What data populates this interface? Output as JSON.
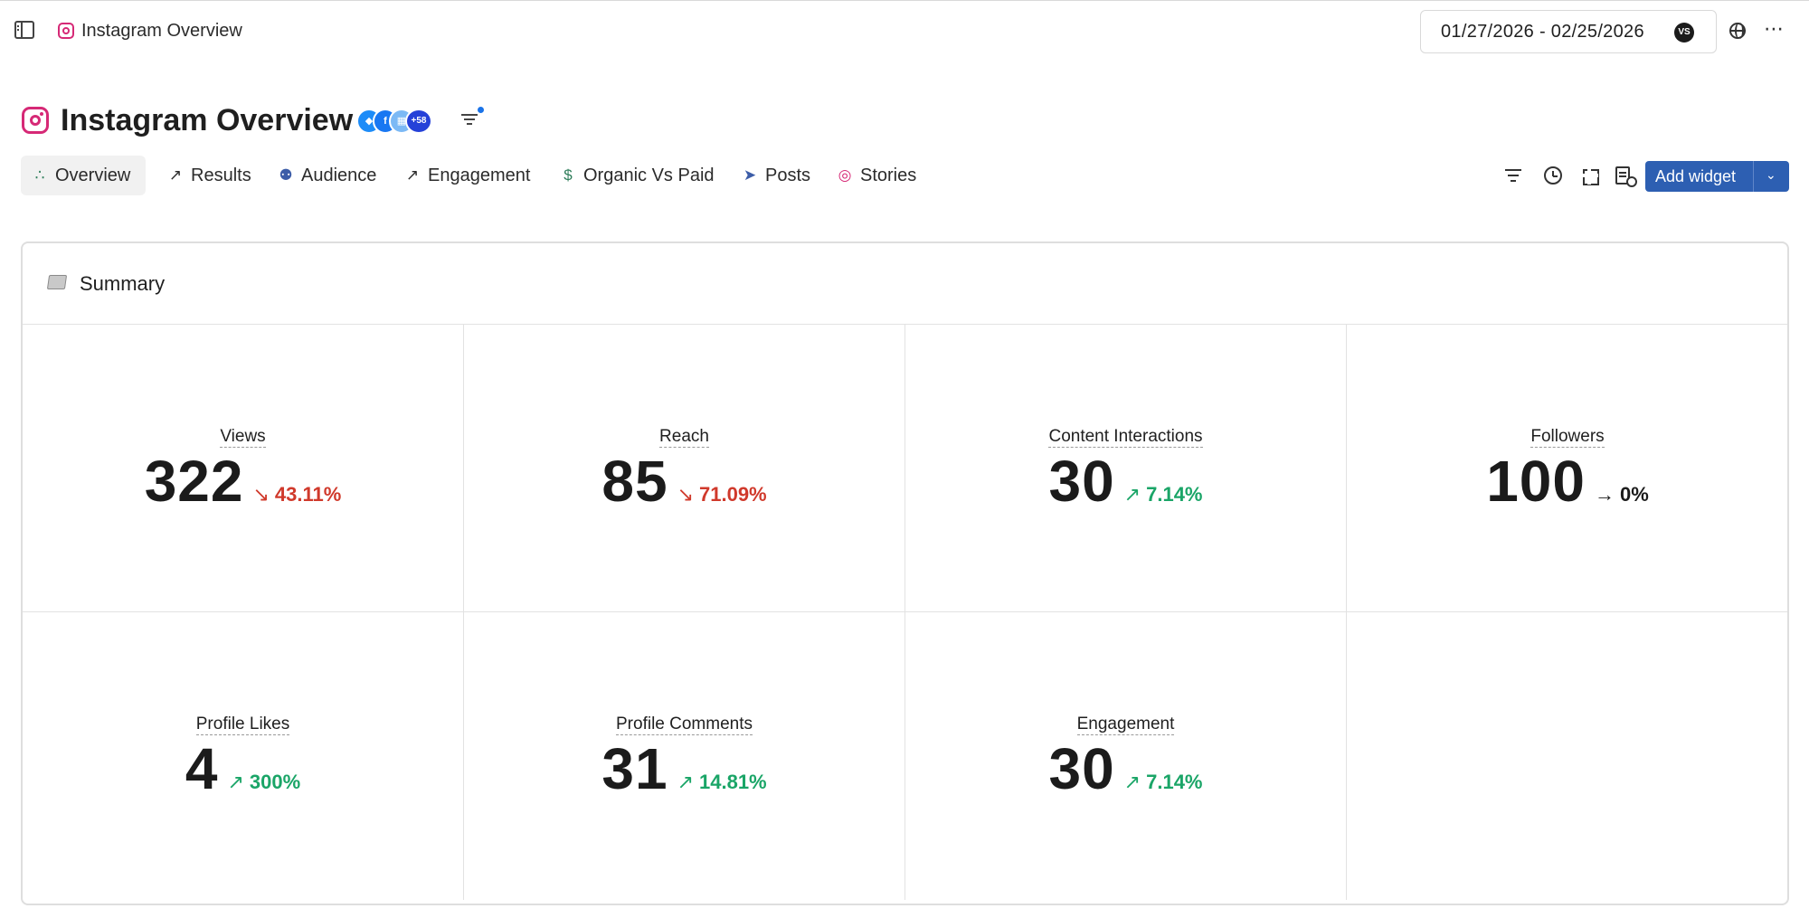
{
  "topbar": {
    "breadcrumb_title": "Instagram Overview",
    "date_range": "01/27/2026 - 02/25/2026",
    "user_initials": "VS",
    "more_label": "⋯"
  },
  "header": {
    "title": "Instagram Overview",
    "account_overflow": "+58"
  },
  "tabs": [
    {
      "label": "Overview",
      "icon": "overview-dots-icon",
      "active": true
    },
    {
      "label": "Results",
      "icon": "trend-up-icon"
    },
    {
      "label": "Audience",
      "icon": "people-icon"
    },
    {
      "label": "Engagement",
      "icon": "trend-up-icon"
    },
    {
      "label": "Organic Vs Paid",
      "icon": "dollar-icon"
    },
    {
      "label": "Posts",
      "icon": "paper-plane-icon"
    },
    {
      "label": "Stories",
      "icon": "stories-circle-icon"
    }
  ],
  "toolbar": {
    "add_widget_label": "Add widget"
  },
  "summary": {
    "title": "Summary",
    "metrics": [
      {
        "label": "Views",
        "value": "322",
        "change": "43.11%",
        "direction": "down",
        "arrow": "↘"
      },
      {
        "label": "Reach",
        "value": "85",
        "change": "71.09%",
        "direction": "down",
        "arrow": "↘"
      },
      {
        "label": "Content Interactions",
        "value": "30",
        "change": "7.14%",
        "direction": "up",
        "arrow": "↗"
      },
      {
        "label": "Followers",
        "value": "100",
        "change": "0%",
        "direction": "flat",
        "arrow": "→"
      },
      {
        "label": "Profile Likes",
        "value": "4",
        "change": "300%",
        "direction": "up",
        "arrow": "↗"
      },
      {
        "label": "Profile Comments",
        "value": "31",
        "change": "14.81%",
        "direction": "up",
        "arrow": "↗"
      },
      {
        "label": "Engagement",
        "value": "30",
        "change": "7.14%",
        "direction": "up",
        "arrow": "↗"
      }
    ]
  },
  "colors": {
    "instagram": "#d62976",
    "primary_button": "#2d5fb2",
    "negative": "#d0392b",
    "positive": "#1aa567"
  }
}
